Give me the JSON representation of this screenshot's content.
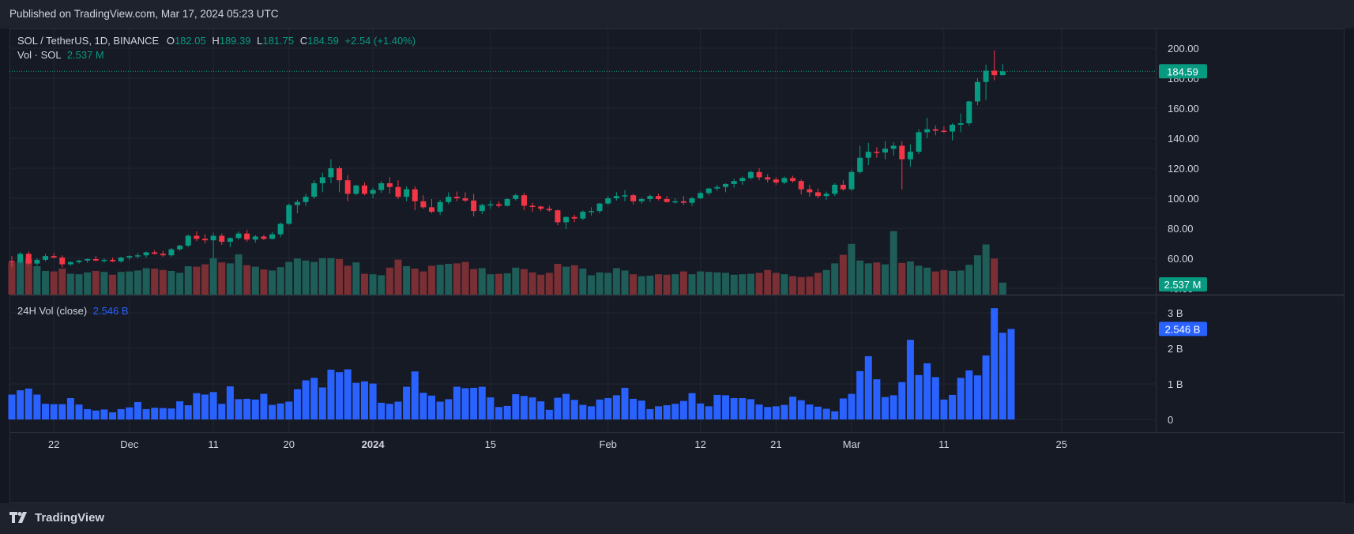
{
  "header": {
    "published": "Published on TradingView.com, Mar 17, 2024 05:23 UTC"
  },
  "footer": {
    "brand": "TradingView"
  },
  "legend": {
    "symbol": "SOL / TetherUS, 1D, BINANCE",
    "o_label": "O",
    "o": "182.05",
    "h_label": "H",
    "h": "189.39",
    "l_label": "L",
    "l": "181.75",
    "c_label": "C",
    "c": "184.59",
    "change": "+2.54 (+1.40%)",
    "vol_label": "Vol · SOL",
    "vol_value": "2.537 M",
    "vol24_label": "24H Vol (close)",
    "vol24_value": "2.546 B"
  },
  "colors": {
    "up": "#089981",
    "down": "#f23645",
    "vol_up": "#1f5e58",
    "vol_down": "#7a2f35",
    "vol24": "#2962ff",
    "grid": "#232733",
    "background": "#161a25"
  },
  "badges": {
    "price": "184.59",
    "vol": "2.537 M",
    "vol24": "2.546 B"
  },
  "chart_data": {
    "type": "candlestick",
    "title": "SOL / TetherUS, 1D, BINANCE",
    "price_axis": {
      "ticks": [
        "200.00",
        "180.00",
        "160.00",
        "140.00",
        "120.00",
        "100.00",
        "80.00",
        "60.00",
        "40.00"
      ],
      "range": [
        40,
        205
      ]
    },
    "volume_axis": {
      "ticks": [
        "3 B",
        "2 B",
        "1 B",
        "0"
      ],
      "range": [
        0,
        3.1
      ]
    },
    "x_ticks": [
      "22",
      "Dec",
      "11",
      "20",
      "2024",
      "15",
      "Feb",
      "12",
      "21",
      "Mar",
      "11",
      "25"
    ],
    "x_tick_index": [
      5,
      14,
      24,
      33,
      43,
      57,
      71,
      82,
      91,
      100,
      111,
      125
    ],
    "ohlc": [
      [
        58.2,
        61.5,
        54.0,
        57.5
      ],
      [
        57.5,
        64.0,
        56.5,
        63.0
      ],
      [
        63.0,
        64.5,
        55.5,
        56.5
      ],
      [
        56.5,
        60.0,
        55.0,
        59.0
      ],
      [
        59.0,
        63.0,
        58.0,
        61.5
      ],
      [
        61.5,
        63.5,
        60.0,
        60.5
      ],
      [
        60.5,
        62.0,
        54.0,
        56.0
      ],
      [
        56.0,
        58.0,
        55.0,
        57.5
      ],
      [
        57.5,
        59.0,
        56.5,
        58.5
      ],
      [
        58.5,
        60.0,
        57.0,
        59.5
      ],
      [
        59.5,
        61.5,
        58.0,
        58.5
      ],
      [
        58.5,
        60.0,
        57.0,
        59.0
      ],
      [
        59.0,
        60.5,
        57.5,
        58.0
      ],
      [
        58.0,
        61.0,
        57.0,
        60.5
      ],
      [
        60.5,
        62.0,
        59.0,
        61.5
      ],
      [
        61.5,
        63.5,
        60.0,
        62.0
      ],
      [
        62.0,
        64.5,
        60.5,
        64.0
      ],
      [
        64.0,
        65.5,
        62.5,
        63.0
      ],
      [
        63.0,
        65.0,
        61.0,
        62.0
      ],
      [
        62.0,
        67.0,
        61.0,
        66.0
      ],
      [
        66.0,
        69.0,
        65.0,
        68.5
      ],
      [
        68.5,
        76.0,
        67.5,
        75.0
      ],
      [
        75.0,
        78.0,
        71.5,
        73.0
      ],
      [
        73.0,
        76.0,
        70.0,
        72.0
      ],
      [
        72.0,
        77.0,
        60.0,
        75.0
      ],
      [
        75.0,
        76.5,
        69.0,
        71.0
      ],
      [
        71.0,
        74.0,
        67.5,
        73.5
      ],
      [
        73.5,
        78.0,
        72.5,
        76.5
      ],
      [
        76.5,
        79.0,
        71.0,
        72.5
      ],
      [
        72.5,
        75.5,
        70.5,
        74.5
      ],
      [
        74.5,
        75.5,
        72.0,
        73.0
      ],
      [
        73.0,
        77.5,
        72.5,
        76.0
      ],
      [
        76.0,
        84.0,
        74.0,
        83.0
      ],
      [
        83.0,
        96.5,
        82.5,
        95.5
      ],
      [
        95.5,
        99.0,
        90.0,
        97.5
      ],
      [
        97.5,
        103.0,
        95.0,
        101.0
      ],
      [
        101.0,
        112.0,
        99.5,
        110.0
      ],
      [
        110.0,
        117.0,
        104.0,
        114.0
      ],
      [
        114.0,
        126.0,
        110.0,
        120.0
      ],
      [
        120.0,
        121.5,
        104.0,
        112.0
      ],
      [
        112.0,
        115.5,
        98.0,
        103.0
      ],
      [
        103.0,
        109.0,
        102.0,
        108.5
      ],
      [
        108.5,
        110.5,
        102.0,
        103.0
      ],
      [
        103.0,
        107.0,
        100.0,
        105.5
      ],
      [
        105.5,
        111.5,
        103.5,
        110.0
      ],
      [
        110.0,
        114.0,
        103.0,
        107.5
      ],
      [
        107.5,
        112.0,
        99.5,
        101.0
      ],
      [
        101.0,
        108.0,
        98.0,
        106.0
      ],
      [
        106.0,
        108.0,
        92.0,
        98.0
      ],
      [
        98.0,
        102.0,
        93.0,
        94.0
      ],
      [
        94.0,
        99.5,
        90.0,
        91.0
      ],
      [
        91.0,
        99.0,
        89.0,
        97.5
      ],
      [
        97.5,
        104.0,
        96.0,
        101.0
      ],
      [
        101.0,
        104.5,
        98.0,
        100.0
      ],
      [
        100.0,
        104.0,
        97.5,
        98.5
      ],
      [
        98.5,
        103.0,
        88.0,
        91.5
      ],
      [
        91.5,
        96.5,
        89.5,
        95.5
      ],
      [
        95.5,
        98.5,
        93.0,
        96.0
      ],
      [
        96.0,
        98.0,
        94.0,
        95.0
      ],
      [
        95.0,
        100.0,
        94.5,
        99.5
      ],
      [
        99.5,
        103.0,
        98.5,
        102.0
      ],
      [
        102.0,
        103.5,
        92.0,
        95.0
      ],
      [
        95.0,
        97.0,
        91.0,
        94.5
      ],
      [
        94.5,
        95.0,
        91.5,
        93.0
      ],
      [
        93.0,
        95.0,
        91.0,
        92.0
      ],
      [
        92.0,
        92.5,
        82.0,
        84.0
      ],
      [
        84.0,
        88.0,
        79.5,
        87.5
      ],
      [
        87.5,
        89.0,
        84.0,
        86.5
      ],
      [
        86.5,
        92.0,
        85.5,
        91.0
      ],
      [
        91.0,
        94.0,
        88.5,
        91.5
      ],
      [
        91.5,
        97.0,
        90.0,
        96.5
      ],
      [
        96.5,
        101.5,
        95.5,
        100.0
      ],
      [
        100.0,
        104.0,
        98.5,
        101.5
      ],
      [
        101.5,
        105.5,
        98.0,
        102.0
      ],
      [
        102.0,
        103.0,
        96.0,
        98.0
      ],
      [
        98.0,
        100.5,
        96.5,
        99.5
      ],
      [
        99.5,
        102.5,
        97.5,
        101.5
      ],
      [
        101.5,
        103.0,
        98.5,
        99.5
      ],
      [
        99.5,
        101.5,
        97.0,
        97.5
      ],
      [
        97.5,
        100.0,
        96.5,
        98.0
      ],
      [
        98.0,
        101.5,
        95.5,
        97.0
      ],
      [
        97.0,
        101.0,
        95.0,
        100.0
      ],
      [
        100.0,
        104.5,
        99.5,
        103.5
      ],
      [
        103.5,
        107.0,
        102.0,
        106.5
      ],
      [
        106.5,
        109.0,
        105.0,
        107.5
      ],
      [
        107.5,
        110.0,
        104.0,
        109.5
      ],
      [
        109.5,
        113.0,
        107.0,
        111.5
      ],
      [
        111.5,
        114.5,
        109.0,
        113.5
      ],
      [
        113.5,
        118.5,
        112.5,
        117.5
      ],
      [
        117.5,
        120.0,
        112.0,
        114.0
      ],
      [
        114.0,
        116.0,
        110.5,
        112.5
      ],
      [
        112.5,
        114.0,
        109.0,
        110.5
      ],
      [
        110.5,
        114.5,
        109.5,
        113.5
      ],
      [
        113.5,
        115.0,
        110.5,
        111.5
      ],
      [
        111.5,
        112.5,
        102.5,
        106.0
      ],
      [
        106.0,
        109.0,
        101.0,
        104.0
      ],
      [
        104.0,
        106.5,
        100.0,
        101.5
      ],
      [
        101.5,
        104.5,
        99.0,
        103.0
      ],
      [
        103.0,
        110.0,
        101.5,
        109.0
      ],
      [
        109.0,
        112.0,
        105.0,
        106.0
      ],
      [
        106.0,
        119.0,
        105.0,
        117.5
      ],
      [
        117.5,
        135.0,
        116.5,
        127.0
      ],
      [
        127.0,
        137.0,
        122.0,
        131.0
      ],
      [
        131.0,
        134.0,
        127.0,
        130.5
      ],
      [
        130.5,
        138.0,
        126.0,
        133.0
      ],
      [
        133.0,
        137.5,
        128.5,
        135.0
      ],
      [
        135.0,
        138.0,
        106.0,
        126.0
      ],
      [
        126.0,
        136.0,
        121.0,
        131.0
      ],
      [
        131.0,
        146.0,
        129.5,
        144.0
      ],
      [
        144.0,
        153.5,
        140.0,
        146.0
      ],
      [
        146.0,
        148.5,
        142.0,
        145.0
      ],
      [
        145.0,
        148.0,
        143.5,
        144.5
      ],
      [
        144.5,
        150.0,
        138.5,
        149.0
      ],
      [
        149.0,
        156.5,
        144.0,
        150.0
      ],
      [
        150.0,
        165.0,
        148.5,
        164.5
      ],
      [
        164.5,
        180.0,
        162.0,
        177.5
      ],
      [
        177.5,
        189.0,
        165.5,
        185.0
      ],
      [
        185.0,
        198.5,
        178.5,
        182.0
      ],
      [
        182.05,
        189.39,
        181.75,
        184.59
      ]
    ],
    "volume_M": [
      6.8,
      7.0,
      7.5,
      6.0,
      5.0,
      4.9,
      5.5,
      4.4,
      4.3,
      4.7,
      5.0,
      4.8,
      4.2,
      4.8,
      4.9,
      5.1,
      5.6,
      5.5,
      5.2,
      5.0,
      4.6,
      6.0,
      5.9,
      6.4,
      7.7,
      6.8,
      6.6,
      8.5,
      6.2,
      5.9,
      5.3,
      5.1,
      5.8,
      6.9,
      7.6,
      7.2,
      6.9,
      7.7,
      7.7,
      7.5,
      6.1,
      6.8,
      4.4,
      4.3,
      4.1,
      5.7,
      7.4,
      6.0,
      5.5,
      4.9,
      6.1,
      6.3,
      6.5,
      6.6,
      6.9,
      5.4,
      5.6,
      4.3,
      4.4,
      4.5,
      5.7,
      5.4,
      4.7,
      4.2,
      4.6,
      6.5,
      5.9,
      6.2,
      5.5,
      4.1,
      4.7,
      4.6,
      5.6,
      5.1,
      4.3,
      3.9,
      4.0,
      4.3,
      4.2,
      4.3,
      4.9,
      4.3,
      4.9,
      4.8,
      4.7,
      4.6,
      4.2,
      4.3,
      4.4,
      4.6,
      5.2,
      4.6,
      4.3,
      3.9,
      3.7,
      3.8,
      4.6,
      5.2,
      6.6,
      8.4,
      10.7,
      7.2,
      6.6,
      6.8,
      6.4,
      13.4,
      6.7,
      7.0,
      6.1,
      5.7,
      4.9,
      5.2,
      5.0,
      5.1,
      6.3,
      8.3,
      10.6,
      7.6,
      2.537
    ],
    "volume_24h_B": [
      0.7,
      0.82,
      0.87,
      0.7,
      0.44,
      0.43,
      0.43,
      0.6,
      0.42,
      0.29,
      0.25,
      0.28,
      0.2,
      0.29,
      0.34,
      0.49,
      0.29,
      0.33,
      0.32,
      0.31,
      0.51,
      0.4,
      0.74,
      0.7,
      0.77,
      0.44,
      0.93,
      0.57,
      0.58,
      0.56,
      0.72,
      0.41,
      0.45,
      0.5,
      0.85,
      1.1,
      1.17,
      0.9,
      1.4,
      1.33,
      1.41,
      1.03,
      1.07,
      1.01,
      0.47,
      0.44,
      0.5,
      0.92,
      1.35,
      0.75,
      0.67,
      0.5,
      0.57,
      0.92,
      0.88,
      0.89,
      0.92,
      0.62,
      0.35,
      0.38,
      0.71,
      0.66,
      0.62,
      0.51,
      0.27,
      0.61,
      0.72,
      0.55,
      0.41,
      0.37,
      0.56,
      0.6,
      0.68,
      0.89,
      0.58,
      0.53,
      0.29,
      0.37,
      0.4,
      0.44,
      0.52,
      0.74,
      0.45,
      0.37,
      0.69,
      0.68,
      0.6,
      0.6,
      0.57,
      0.42,
      0.35,
      0.37,
      0.41,
      0.64,
      0.54,
      0.42,
      0.36,
      0.3,
      0.23,
      0.59,
      0.72,
      1.36,
      1.78,
      1.13,
      0.63,
      0.68,
      1.05,
      2.24,
      1.25,
      1.58,
      1.19,
      0.56,
      0.69,
      1.17,
      1.38,
      1.24,
      1.8,
      3.13,
      2.44,
      2.546
    ]
  }
}
